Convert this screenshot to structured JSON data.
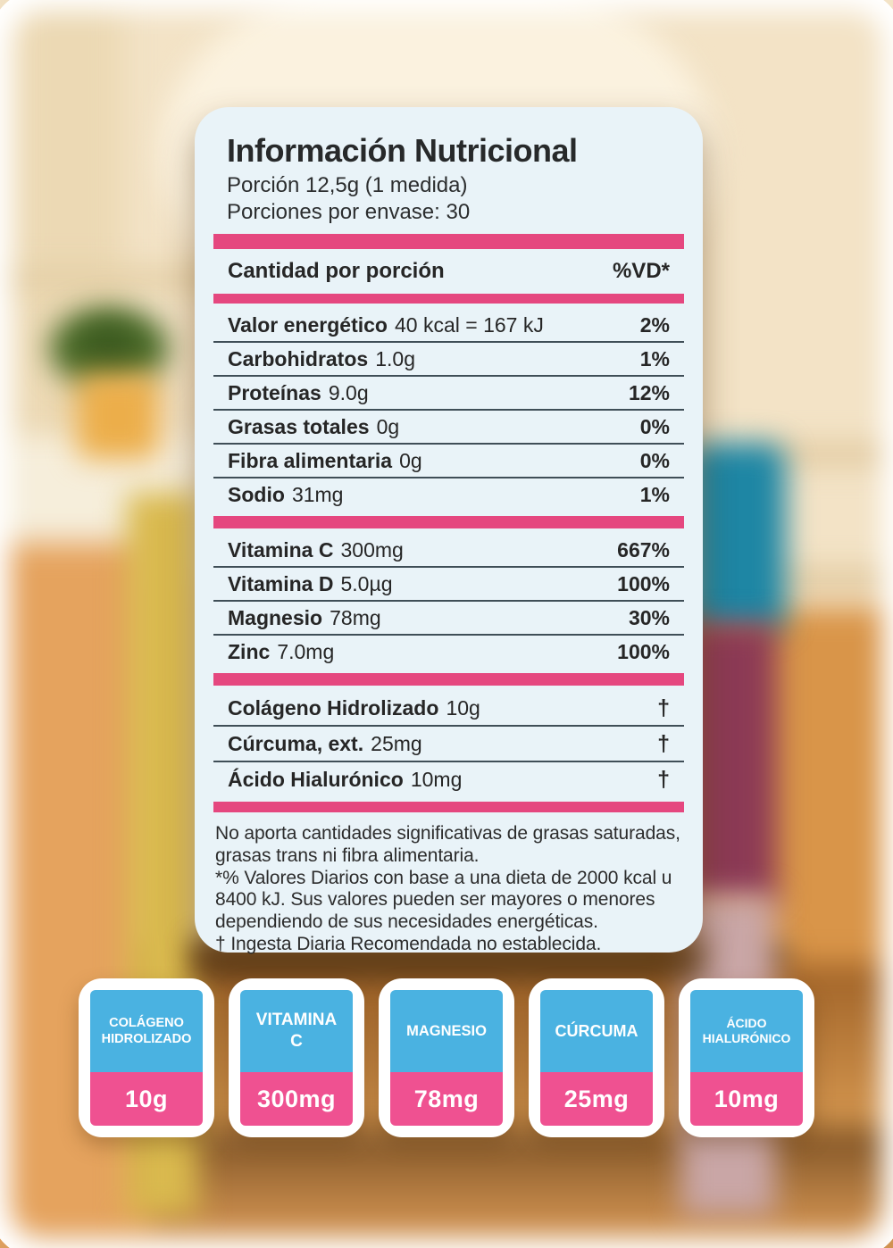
{
  "label": {
    "title": "Información Nutricional",
    "serving_line1": "Porción 12,5g (1 medida)",
    "serving_line2": "Porciones por envase: 30",
    "header": {
      "left": "Cantidad por porción",
      "right": "%VD*"
    },
    "rows": [
      {
        "name": "Valor energético",
        "value": "40 kcal = 167 kJ",
        "vd": "2%"
      },
      {
        "name": "Carbohidratos",
        "value": "1.0g",
        "vd": "1%"
      },
      {
        "name": "Proteínas",
        "value": "9.0g",
        "vd": "12%"
      },
      {
        "name": "Grasas totales",
        "value": "0g",
        "vd": "0%"
      },
      {
        "name": "Fibra alimentaria",
        "value": "0g",
        "vd": "0%"
      },
      {
        "name": "Sodio",
        "value": "31mg",
        "vd": "1%"
      }
    ],
    "rows_micro": [
      {
        "name": "Vitamina C",
        "value": "300mg",
        "vd": "667%"
      },
      {
        "name": "Vitamina D",
        "value": "5.0µg",
        "vd": "100%"
      },
      {
        "name": "Magnesio",
        "value": "78mg",
        "vd": "30%"
      },
      {
        "name": "Zinc",
        "value": "7.0mg",
        "vd": "100%"
      }
    ],
    "rows_extra": [
      {
        "name": "Colágeno Hidrolizado",
        "value": "10g",
        "vd": "†"
      },
      {
        "name": "Cúrcuma, ext.",
        "value": "25mg",
        "vd": "†"
      },
      {
        "name": "Ácido Hialurónico",
        "value": "10mg",
        "vd": "†"
      }
    ],
    "footnotes": [
      "No aporta cantidades significativas de grasas saturadas, grasas trans ni fibra alimentaria.",
      "*% Valores Diarios con base a una dieta de 2000 kcal u 8400 kJ. Sus valores pueden ser mayores o menores dependiendo de sus necesidades energéticas.",
      "† Ingesta Diaria Recomendada no establecida."
    ]
  },
  "badges": [
    {
      "name": "COLÁGENO HIDROLIZADO",
      "value": "10g"
    },
    {
      "name": "VITAMINA C",
      "value": "300mg"
    },
    {
      "name": "MAGNESIO",
      "value": "78mg"
    },
    {
      "name": "CÚRCUMA",
      "value": "25mg"
    },
    {
      "name": "ÁCIDO HIALURÓNICO",
      "value": "10mg"
    }
  ],
  "colors": {
    "accent_pink": "#e5477f",
    "badge_pink": "#ef5191",
    "badge_blue": "#4ab2e1",
    "card_background": "#e9f3f8"
  }
}
